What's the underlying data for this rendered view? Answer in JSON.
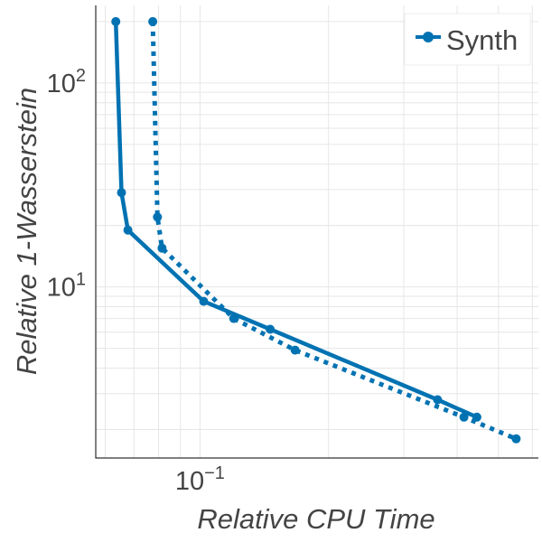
{
  "chart_data": {
    "type": "line",
    "xlabel": "Relative CPU Time",
    "ylabel": "Relative 1-Wasserstein",
    "xscale": "log",
    "yscale": "log",
    "xlim": [
      0.057,
      0.62
    ],
    "ylim": [
      1.45,
      240
    ],
    "x_ticks": [
      {
        "value": 0.1,
        "base": "10",
        "exp": "−1"
      }
    ],
    "y_ticks": [
      {
        "value": 10,
        "base": "10",
        "exp": "1"
      },
      {
        "value": 100,
        "base": "10",
        "exp": "2"
      }
    ],
    "legend": {
      "label": "Synth",
      "position": "top-right"
    },
    "colors": {
      "series": "#0072b2",
      "grid": "#e6e6e6",
      "axis": "#000000",
      "text": "#444444"
    },
    "series": [
      {
        "name": "Synth",
        "style": "solid",
        "points": [
          {
            "x": 0.0635,
            "y": 200
          },
          {
            "x": 0.0655,
            "y": 29
          },
          {
            "x": 0.0678,
            "y": 19
          },
          {
            "x": 0.102,
            "y": 8.5
          },
          {
            "x": 0.146,
            "y": 6.2
          },
          {
            "x": 0.36,
            "y": 2.8
          },
          {
            "x": 0.445,
            "y": 2.3
          }
        ]
      },
      {
        "name": "Synth",
        "style": "dotted",
        "points": [
          {
            "x": 0.0775,
            "y": 200
          },
          {
            "x": 0.0795,
            "y": 22
          },
          {
            "x": 0.0815,
            "y": 15.5
          },
          {
            "x": 0.12,
            "y": 7
          },
          {
            "x": 0.167,
            "y": 4.9
          },
          {
            "x": 0.415,
            "y": 2.3
          },
          {
            "x": 0.55,
            "y": 1.8
          }
        ]
      }
    ]
  }
}
